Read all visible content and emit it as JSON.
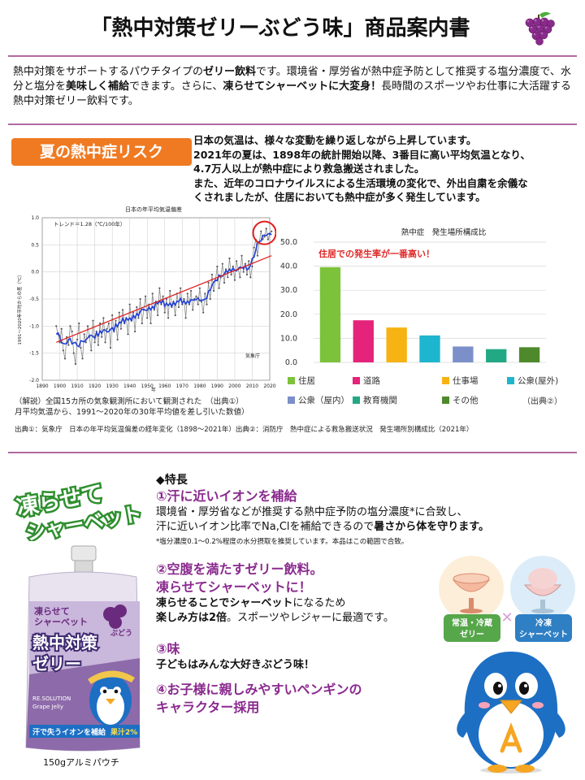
{
  "header": {
    "title": "「熱中対策ゼリーぶどう味」商品案内書",
    "grape_icon": "grape-icon"
  },
  "intro": {
    "p1": "熱中対策をサポートするパウチタイプの",
    "p1b": "ゼリー飲料",
    "p2": "です。環境省・厚労省が熱中症予防として推奨する塩分濃度で、水分と塩分を",
    "p2b": "美味しく補給",
    "p3": "できます。さらに、",
    "p3b": "凍らせてシャーベットに大変身！",
    "p4": "長時間のスポーツやお仕事に大活躍する熱中対策ゼリー飲料です。"
  },
  "risk": {
    "tag": "夏の熱中症リスク",
    "lines": [
      "日本の気温は、様々な変動を繰り返しながら上昇しています。",
      "2021年の夏は、1898年の統計開始以降、3番目に高い平均気温となり、",
      "4.7万人以上が熱中症により救急搬送されました。",
      "また、近年のコロナウイルスによる生活環境の変化で、外出自粛を余儀な",
      "くされましたが、住居においても熱中症が多く発生しています。"
    ]
  },
  "left_chart": {
    "title": "日本の年平均気温偏差",
    "trend_label": "トレンド＝1.28（℃/100年）",
    "ylabel": "1991〜2020年平均からの差（℃）",
    "xlabel": "年",
    "credit": "気象庁",
    "note1": "（解説）全国15カ所の気象観測所において観測された",
    "note2": "月平均気温から、1991〜2020年の30年平均値を差し引いた数値）",
    "source_tag": "（出典①）"
  },
  "chart_data": [
    {
      "type": "line",
      "title": "日本の年平均気温偏差",
      "xlabel": "年",
      "ylabel": "1991〜2020年平均からの差（℃）",
      "xlim": [
        1890,
        2020
      ],
      "ylim": [
        -2.0,
        1.0
      ],
      "x_ticks": [
        "1890",
        "1900",
        "1910",
        "1920",
        "1930",
        "1940",
        "1950",
        "1960",
        "1970",
        "1980",
        "1990",
        "2000",
        "2010",
        "2020"
      ],
      "y_ticks": [
        "1.0",
        "0.5",
        "0.0",
        "-0.5",
        "-1.0",
        "-1.5",
        "-2.0"
      ],
      "series": [
        {
          "name": "annual",
          "x_start": 1898,
          "values": [
            -1.0,
            -1.15,
            -1.3,
            -1.05,
            -1.45,
            -1.6,
            -1.2,
            -1.35,
            -1.0,
            -1.1,
            -1.5,
            -1.7,
            -1.25,
            -0.95,
            -1.4,
            -1.6,
            -1.15,
            -1.3,
            -1.0,
            -1.2,
            -1.45,
            -0.9,
            -1.3,
            -1.1,
            -1.35,
            -0.95,
            -1.2,
            -0.85,
            -1.3,
            -1.05,
            -0.95,
            -1.4,
            -0.8,
            -1.1,
            -0.9,
            -1.25,
            -0.75,
            -1.05,
            -0.7,
            -0.95,
            -0.85,
            -1.15,
            -0.6,
            -0.9,
            -0.75,
            -1.1,
            -0.65,
            -0.85,
            -0.5,
            -0.95,
            -0.7,
            -0.45,
            -0.85,
            -0.6,
            -0.95,
            -0.4,
            -0.7,
            -0.55,
            -0.8,
            -0.3,
            -0.6,
            -0.45,
            -0.75,
            -0.5,
            -0.85,
            -0.35,
            -0.65,
            -0.55,
            -0.8,
            -0.4,
            -0.65,
            -0.3,
            -0.6,
            -0.5,
            -0.85,
            -0.4,
            -0.6,
            -0.35,
            -0.7,
            -0.5,
            -0.45,
            -0.6,
            -0.3,
            -0.55,
            -0.75,
            -0.4,
            -0.6,
            -0.2,
            -0.5,
            -0.05,
            -0.35,
            -0.15,
            0.1,
            -0.3,
            -0.1,
            0.15,
            -0.2,
            0.05,
            -0.1,
            0.25,
            -0.05,
            0.1,
            -0.15,
            0.2,
            0.05,
            -0.1,
            0.3,
            0.0,
            0.15,
            -0.05,
            0.2,
            -0.1,
            0.1,
            0.45,
            0.6,
            0.3,
            0.55,
            0.75,
            0.6,
            0.65,
            0.8,
            0.6,
            0.7,
            0.75
          ]
        },
        {
          "name": "trend",
          "x": [
            1898,
            2021
          ],
          "values": [
            -1.3,
            0.3
          ]
        }
      ]
    },
    {
      "type": "bar",
      "title": "熱中症　発生場所構成比",
      "annotation": "住居での発生率が一番高い！",
      "categories": [
        "住居",
        "道路",
        "仕事場",
        "公衆(屋外)",
        "公衆（屋内）",
        "教育機関",
        "その他"
      ],
      "values": [
        39.6,
        17.5,
        14.5,
        11.2,
        6.6,
        5.5,
        6.3
      ],
      "colors": [
        "#7dc23b",
        "#e5237a",
        "#f7b314",
        "#1eb5cf",
        "#7d8fc9",
        "#23a884",
        "#4e8a2c"
      ],
      "ylim": [
        0,
        50
      ],
      "y_ticks": [
        "50.0",
        "40.0",
        "30.0",
        "20.0",
        "10.0",
        "0.0"
      ],
      "legend": [
        "住居",
        "道路",
        "仕事場",
        "公衆(屋外)",
        "公衆（屋内）",
        "教育機関",
        "その他"
      ],
      "source_tag": "（出典②）"
    }
  ],
  "right_chart": {
    "title": "熱中症　発生場所構成比",
    "annotation": "住居での発生率が一番高い！",
    "source_tag": "（出典②）"
  },
  "source_line": "出典①：気象庁　日本の年平均気温偏差の経年変化（1898〜2021年）出典②：消防庁　熱中症による救急搬送状況　発生場所別構成比（2021年）",
  "product": {
    "banner_line1": "凍らせて",
    "banner_line2": "シャーベット",
    "package_label": "150gアルミパウチ",
    "pack_brand1": "熱中対策",
    "pack_brand2": "ゼリー",
    "pack_sub": "凍らせて",
    "pack_sub2": "シャーベット",
    "pack_budou": "ぶどう",
    "pack_eng": "RE.SOLUTION",
    "pack_eng2": "Grape Jelly",
    "pack_bottom": "汗で失うイオンを補給",
    "pack_percent": "果汁2%"
  },
  "features": {
    "heading": "◆特長",
    "f1_title": "①汗に近いイオンを補給",
    "f1_l1": "環境省・厚労省などが推奨する熱中症予防の塩分濃度*に合致し、",
    "f1_l2a": "汗に近いイオン比率でNa,Clを補給できるので",
    "f1_l2b": "暑さから体を守ります。",
    "f1_note": "*塩分濃度0.1〜0.2%程度の水分摂取を推奨しています。本品はこの範囲で合致。",
    "f2_title1": "②空腹を満たすゼリー飲料。",
    "f2_title2": "凍らせてシャーベットに！",
    "f2_l1a": "凍らせることでシャーベット",
    "f2_l1b": "になるため",
    "f2_l2a": "楽しみ方は2倍",
    "f2_l2b": "。スポーツやレジャーに最適です。",
    "f3_title": "③味",
    "f3_l1": "子どもはみんな大好きぶどう味！",
    "f4_title1": "④お子様に親しみやすいペンギンの",
    "f4_title2": "キャラクター採用",
    "serve1_l1": "常温・冷蔵",
    "serve1_l2": "ゼリー",
    "serve2_l1": "冷凍",
    "serve2_l2": "シャーベット"
  }
}
